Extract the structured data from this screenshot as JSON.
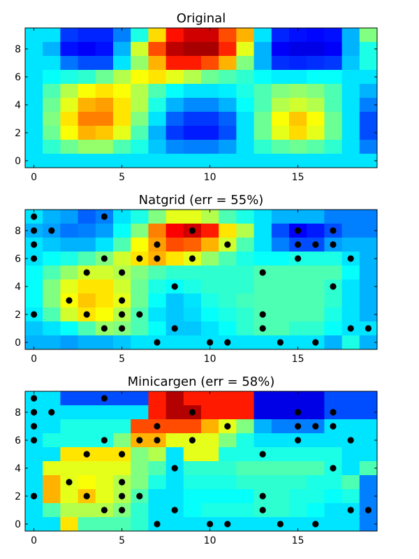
{
  "chart_data": [
    {
      "type": "heatmap",
      "title": "Original",
      "xlim": [
        -0.5,
        19.5
      ],
      "ylim": [
        -0.5,
        9.5
      ],
      "xticks": [
        0,
        5,
        10,
        15
      ],
      "yticks": [
        0,
        2,
        4,
        6,
        8
      ],
      "colormap": "jet",
      "value_range": [
        0,
        1
      ],
      "grid": false,
      "z_rows_y9_to_y0": [
        [
          0.35,
          0.35,
          0.18,
          0.16,
          0.16,
          0.25,
          0.4,
          0.66,
          0.86,
          0.92,
          0.92,
          0.8,
          0.7,
          0.35,
          0.16,
          0.14,
          0.13,
          0.14,
          0.3,
          0.5
        ],
        [
          0.35,
          0.3,
          0.14,
          0.12,
          0.14,
          0.3,
          0.58,
          0.8,
          0.94,
          0.96,
          0.96,
          0.84,
          0.6,
          0.3,
          0.12,
          0.1,
          0.1,
          0.12,
          0.3,
          0.4
        ],
        [
          0.35,
          0.35,
          0.24,
          0.2,
          0.2,
          0.35,
          0.52,
          0.7,
          0.85,
          0.85,
          0.8,
          0.7,
          0.5,
          0.3,
          0.17,
          0.16,
          0.17,
          0.18,
          0.32,
          0.4
        ],
        [
          0.35,
          0.38,
          0.4,
          0.42,
          0.48,
          0.55,
          0.62,
          0.65,
          0.6,
          0.55,
          0.48,
          0.45,
          0.42,
          0.38,
          0.36,
          0.36,
          0.38,
          0.38,
          0.35,
          0.35
        ],
        [
          0.35,
          0.45,
          0.55,
          0.62,
          0.65,
          0.62,
          0.55,
          0.45,
          0.38,
          0.35,
          0.35,
          0.36,
          0.4,
          0.45,
          0.5,
          0.52,
          0.5,
          0.45,
          0.35,
          0.3
        ],
        [
          0.35,
          0.48,
          0.6,
          0.7,
          0.72,
          0.65,
          0.55,
          0.4,
          0.3,
          0.26,
          0.26,
          0.3,
          0.38,
          0.45,
          0.55,
          0.58,
          0.55,
          0.45,
          0.35,
          0.25
        ],
        [
          0.35,
          0.5,
          0.65,
          0.75,
          0.75,
          0.65,
          0.5,
          0.35,
          0.22,
          0.18,
          0.18,
          0.22,
          0.35,
          0.48,
          0.62,
          0.68,
          0.62,
          0.48,
          0.35,
          0.2
        ],
        [
          0.35,
          0.48,
          0.62,
          0.7,
          0.68,
          0.6,
          0.45,
          0.3,
          0.18,
          0.15,
          0.15,
          0.2,
          0.35,
          0.48,
          0.6,
          0.66,
          0.6,
          0.48,
          0.35,
          0.2
        ],
        [
          0.35,
          0.42,
          0.48,
          0.52,
          0.52,
          0.45,
          0.4,
          0.32,
          0.26,
          0.25,
          0.25,
          0.28,
          0.35,
          0.42,
          0.46,
          0.48,
          0.46,
          0.42,
          0.35,
          0.25
        ],
        [
          0.35,
          0.35,
          0.35,
          0.35,
          0.35,
          0.35,
          0.35,
          0.35,
          0.35,
          0.35,
          0.35,
          0.35,
          0.35,
          0.35,
          0.35,
          0.35,
          0.35,
          0.35,
          0.35,
          0.35
        ]
      ]
    },
    {
      "type": "heatmap",
      "title": "Natgrid (err = 55%)",
      "xlim": [
        -0.5,
        19.5
      ],
      "ylim": [
        -0.5,
        9.5
      ],
      "xticks": [
        0,
        5,
        10,
        15
      ],
      "yticks": [
        0,
        2,
        4,
        6,
        8
      ],
      "colormap": "jet",
      "value_range": [
        0,
        1
      ],
      "grid": false,
      "z_rows_y9_to_y0": [
        [
          0.35,
          0.3,
          0.28,
          0.22,
          0.25,
          0.35,
          0.4,
          0.5,
          0.6,
          0.6,
          0.55,
          0.45,
          0.4,
          0.35,
          0.3,
          0.3,
          0.3,
          0.25,
          0.25,
          0.25
        ],
        [
          0.3,
          0.28,
          0.24,
          0.25,
          0.28,
          0.38,
          0.5,
          0.75,
          0.88,
          0.92,
          0.85,
          0.65,
          0.55,
          0.35,
          0.2,
          0.12,
          0.15,
          0.2,
          0.25,
          0.25
        ],
        [
          0.35,
          0.32,
          0.3,
          0.3,
          0.35,
          0.45,
          0.62,
          0.72,
          0.8,
          0.78,
          0.7,
          0.58,
          0.45,
          0.35,
          0.25,
          0.2,
          0.2,
          0.28,
          0.3,
          0.3
        ],
        [
          0.35,
          0.38,
          0.4,
          0.45,
          0.5,
          0.58,
          0.65,
          0.7,
          0.65,
          0.6,
          0.52,
          0.45,
          0.4,
          0.38,
          0.38,
          0.4,
          0.4,
          0.4,
          0.35,
          0.3
        ],
        [
          0.38,
          0.45,
          0.52,
          0.58,
          0.58,
          0.55,
          0.5,
          0.45,
          0.42,
          0.42,
          0.42,
          0.42,
          0.42,
          0.45,
          0.45,
          0.45,
          0.45,
          0.45,
          0.38,
          0.3
        ],
        [
          0.38,
          0.5,
          0.6,
          0.65,
          0.65,
          0.58,
          0.48,
          0.4,
          0.38,
          0.4,
          0.42,
          0.42,
          0.42,
          0.45,
          0.45,
          0.45,
          0.45,
          0.42,
          0.35,
          0.3
        ],
        [
          0.38,
          0.5,
          0.62,
          0.68,
          0.65,
          0.6,
          0.48,
          0.38,
          0.32,
          0.35,
          0.4,
          0.42,
          0.44,
          0.45,
          0.45,
          0.45,
          0.45,
          0.42,
          0.35,
          0.3
        ],
        [
          0.36,
          0.45,
          0.58,
          0.65,
          0.62,
          0.55,
          0.45,
          0.35,
          0.32,
          0.34,
          0.38,
          0.4,
          0.42,
          0.45,
          0.45,
          0.45,
          0.45,
          0.4,
          0.35,
          0.3
        ],
        [
          0.32,
          0.35,
          0.38,
          0.45,
          0.52,
          0.5,
          0.45,
          0.38,
          0.32,
          0.32,
          0.35,
          0.38,
          0.42,
          0.45,
          0.45,
          0.42,
          0.42,
          0.38,
          0.35,
          0.35
        ],
        [
          0.3,
          0.3,
          0.28,
          0.3,
          0.3,
          0.32,
          0.35,
          0.35,
          0.35,
          0.35,
          0.35,
          0.35,
          0.35,
          0.35,
          0.35,
          0.35,
          0.35,
          0.3,
          0.4,
          0.3
        ]
      ],
      "sample_points": {
        "x": [
          0,
          4,
          0,
          1,
          9,
          15,
          17,
          0,
          7,
          11,
          15,
          16,
          17,
          0,
          4,
          6,
          7,
          9,
          15,
          18,
          3,
          5,
          13,
          8,
          17,
          2,
          5,
          0,
          3,
          5,
          6,
          13,
          4,
          5,
          8,
          13,
          18,
          19,
          7,
          10,
          11,
          14,
          16
        ],
        "y": [
          9,
          9,
          8,
          8,
          8,
          8,
          8,
          7,
          7,
          7,
          7,
          7,
          7,
          6,
          6,
          6,
          6,
          6,
          6,
          6,
          5,
          5,
          5,
          4,
          4,
          3,
          3,
          2,
          2,
          2,
          2,
          2,
          1,
          1,
          1,
          1,
          1,
          1,
          0,
          0,
          0,
          0,
          0
        ]
      }
    },
    {
      "type": "heatmap",
      "title": "Minicargen (err = 58%)",
      "xlim": [
        -0.5,
        19.5
      ],
      "ylim": [
        -0.5,
        9.5
      ],
      "xticks": [
        0,
        5,
        10,
        15
      ],
      "yticks": [
        0,
        2,
        4,
        6,
        8
      ],
      "colormap": "jet",
      "value_range": [
        0,
        1
      ],
      "grid": false,
      "z_rows_y9_to_y0": [
        [
          0.35,
          0.35,
          0.2,
          0.2,
          0.2,
          0.2,
          0.2,
          0.85,
          0.95,
          0.85,
          0.85,
          0.85,
          0.85,
          0.1,
          0.1,
          0.1,
          0.1,
          0.2,
          0.2,
          0.2
        ],
        [
          0.35,
          0.35,
          0.35,
          0.35,
          0.35,
          0.35,
          0.35,
          0.85,
          0.95,
          0.95,
          0.85,
          0.85,
          0.85,
          0.1,
          0.1,
          0.1,
          0.1,
          0.2,
          0.2,
          0.2
        ],
        [
          0.35,
          0.35,
          0.4,
          0.4,
          0.4,
          0.4,
          0.8,
          0.8,
          0.8,
          0.8,
          0.7,
          0.6,
          0.5,
          0.3,
          0.25,
          0.25,
          0.25,
          0.35,
          0.35,
          0.35
        ],
        [
          0.35,
          0.4,
          0.4,
          0.4,
          0.4,
          0.5,
          0.7,
          0.7,
          0.6,
          0.6,
          0.6,
          0.5,
          0.4,
          0.35,
          0.35,
          0.35,
          0.35,
          0.35,
          0.35,
          0.35
        ],
        [
          0.35,
          0.35,
          0.65,
          0.65,
          0.65,
          0.65,
          0.5,
          0.55,
          0.35,
          0.6,
          0.6,
          0.4,
          0.4,
          0.4,
          0.4,
          0.4,
          0.4,
          0.4,
          0.35,
          0.35
        ],
        [
          0.35,
          0.6,
          0.6,
          0.6,
          0.6,
          0.6,
          0.5,
          0.45,
          0.35,
          0.42,
          0.42,
          0.42,
          0.45,
          0.45,
          0.45,
          0.45,
          0.45,
          0.4,
          0.35,
          0.45
        ],
        [
          0.35,
          0.7,
          0.6,
          0.62,
          0.6,
          0.55,
          0.5,
          0.4,
          0.35,
          0.4,
          0.4,
          0.4,
          0.42,
          0.42,
          0.42,
          0.42,
          0.4,
          0.4,
          0.45,
          0.25
        ],
        [
          0.35,
          0.7,
          0.6,
          0.68,
          0.6,
          0.55,
          0.45,
          0.35,
          0.35,
          0.38,
          0.38,
          0.38,
          0.38,
          0.42,
          0.42,
          0.4,
          0.4,
          0.38,
          0.4,
          0.25
        ],
        [
          0.35,
          0.45,
          0.55,
          0.55,
          0.55,
          0.5,
          0.42,
          0.35,
          0.35,
          0.38,
          0.4,
          0.4,
          0.4,
          0.42,
          0.42,
          0.4,
          0.38,
          0.35,
          0.35,
          0.25
        ],
        [
          0.35,
          0.35,
          0.65,
          0.45,
          0.45,
          0.45,
          0.42,
          0.35,
          0.35,
          0.35,
          0.35,
          0.35,
          0.35,
          0.35,
          0.35,
          0.35,
          0.35,
          0.35,
          0.35,
          0.25
        ]
      ],
      "sample_points": {
        "x": [
          0,
          4,
          0,
          1,
          9,
          15,
          17,
          0,
          7,
          11,
          15,
          16,
          17,
          0,
          4,
          6,
          7,
          9,
          15,
          18,
          3,
          5,
          13,
          8,
          17,
          2,
          5,
          0,
          3,
          5,
          6,
          13,
          4,
          5,
          8,
          13,
          18,
          19,
          7,
          10,
          11,
          14,
          16
        ],
        "y": [
          9,
          9,
          8,
          8,
          8,
          8,
          8,
          7,
          7,
          7,
          7,
          7,
          7,
          6,
          6,
          6,
          6,
          6,
          6,
          6,
          5,
          5,
          5,
          4,
          4,
          3,
          3,
          2,
          2,
          2,
          2,
          2,
          1,
          1,
          1,
          1,
          1,
          1,
          0,
          0,
          0,
          0,
          0
        ]
      }
    }
  ]
}
